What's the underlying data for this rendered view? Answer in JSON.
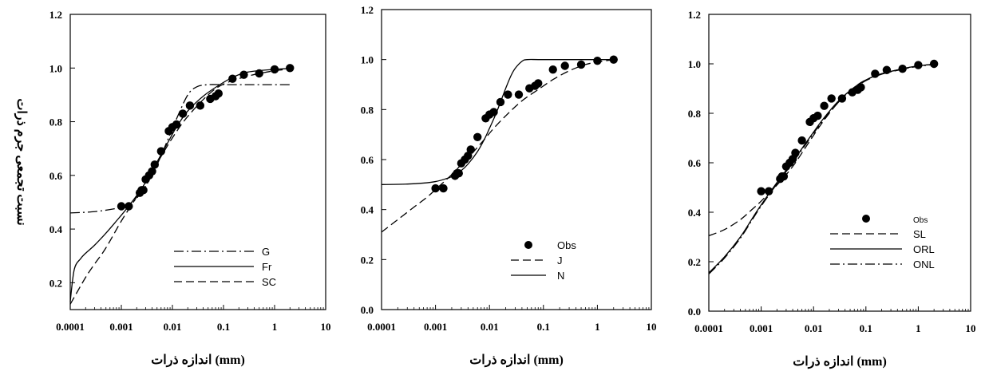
{
  "chart_data": [
    {
      "type": "line",
      "xscale": "log",
      "xlim": [
        0.0001,
        10
      ],
      "ylim": [
        0.1,
        1.2
      ],
      "xticks": [
        "0.0001",
        "0.001",
        "0.01",
        "0.1",
        "1",
        "10"
      ],
      "yticks": [
        "0.2",
        "0.4",
        "0.6",
        "0.8",
        "1.0",
        "1.2"
      ],
      "ytick_values": [
        0.2,
        0.4,
        0.6,
        0.8,
        1.0,
        1.2
      ],
      "xlabel": "اندازه  ذرات (mm)",
      "ylabel": "نسبت تجمعی جرم ذرات",
      "legend_position": "bottom-right",
      "observed": {
        "x": [
          0.001,
          0.0014,
          0.0023,
          0.0025,
          0.0027,
          0.003,
          0.0035,
          0.004,
          0.0045,
          0.006,
          0.0085,
          0.01,
          0.012,
          0.016,
          0.022,
          0.035,
          0.055,
          0.07,
          0.08,
          0.15,
          0.25,
          0.5,
          1.0,
          2.0
        ],
        "y": [
          0.485,
          0.485,
          0.535,
          0.545,
          0.545,
          0.585,
          0.6,
          0.615,
          0.64,
          0.69,
          0.765,
          0.78,
          0.79,
          0.83,
          0.86,
          0.86,
          0.885,
          0.895,
          0.905,
          0.96,
          0.975,
          0.98,
          0.995,
          1.0
        ]
      },
      "series": [
        {
          "name": "G",
          "dash": "dashdot",
          "x": [
            0.0001,
            0.0003,
            0.0007,
            0.001,
            0.0015,
            0.002,
            0.003,
            0.005,
            0.008,
            0.012,
            0.02,
            0.03,
            0.05,
            0.1,
            0.3,
            1.0,
            2.0
          ],
          "y": [
            0.46,
            0.465,
            0.475,
            0.483,
            0.495,
            0.515,
            0.56,
            0.64,
            0.73,
            0.81,
            0.9,
            0.93,
            0.938,
            0.938,
            0.938,
            0.938,
            0.938
          ]
        },
        {
          "name": "Fr",
          "dash": "solid",
          "x": [
            0.0001,
            0.00012,
            0.00016,
            0.0002,
            0.0003,
            0.0005,
            0.0008,
            0.0012,
            0.002,
            0.003,
            0.005,
            0.008,
            0.012,
            0.02,
            0.04,
            0.08,
            0.15,
            0.3,
            1.0,
            2.0
          ],
          "y": [
            0.13,
            0.25,
            0.29,
            0.31,
            0.34,
            0.385,
            0.43,
            0.47,
            0.525,
            0.575,
            0.65,
            0.72,
            0.78,
            0.84,
            0.895,
            0.935,
            0.965,
            0.985,
            0.995,
            0.998
          ]
        },
        {
          "name": "SC",
          "dash": "dashed",
          "x": [
            0.0001,
            0.0002,
            0.0003,
            0.0005,
            0.001,
            0.002,
            0.003,
            0.005,
            0.01,
            0.02,
            0.05,
            0.1,
            0.3,
            1.0,
            2.0
          ],
          "y": [
            0.12,
            0.22,
            0.27,
            0.33,
            0.43,
            0.52,
            0.575,
            0.645,
            0.74,
            0.82,
            0.9,
            0.94,
            0.97,
            0.99,
            0.995
          ]
        }
      ],
      "legend": [
        {
          "label": "G",
          "dash": "dashdot"
        },
        {
          "label": "Fr",
          "dash": "solid"
        },
        {
          "label": "SC",
          "dash": "dashed"
        }
      ]
    },
    {
      "type": "line",
      "xscale": "log",
      "xlim": [
        0.0001,
        10
      ],
      "ylim": [
        0.0,
        1.2
      ],
      "xticks": [
        "0.0001",
        "0.001",
        "0.01",
        "0.1",
        "1",
        "10"
      ],
      "yticks": [
        "0.0",
        "0.2",
        "0.4",
        "0.6",
        "0.8",
        "1.0",
        "1.2"
      ],
      "ytick_values": [
        0.0,
        0.2,
        0.4,
        0.6,
        0.8,
        1.0,
        1.2
      ],
      "xlabel": "اندازه  ذرات (mm)",
      "ylabel": "",
      "legend_position": "bottom-right",
      "observed": {
        "x": [
          0.001,
          0.0014,
          0.0023,
          0.0025,
          0.0027,
          0.003,
          0.0035,
          0.004,
          0.0045,
          0.006,
          0.0085,
          0.01,
          0.012,
          0.016,
          0.022,
          0.035,
          0.055,
          0.07,
          0.08,
          0.15,
          0.25,
          0.5,
          1.0,
          2.0
        ],
        "y": [
          0.485,
          0.485,
          0.535,
          0.545,
          0.545,
          0.585,
          0.6,
          0.615,
          0.64,
          0.69,
          0.765,
          0.78,
          0.79,
          0.83,
          0.86,
          0.86,
          0.885,
          0.895,
          0.905,
          0.96,
          0.975,
          0.98,
          0.995,
          1.0
        ]
      },
      "series": [
        {
          "name": "J",
          "dash": "dashed",
          "x": [
            0.0001,
            0.0002,
            0.0004,
            0.0007,
            0.001,
            0.002,
            0.003,
            0.005,
            0.008,
            0.012,
            0.02,
            0.04,
            0.08,
            0.15,
            0.3,
            0.6,
            1.0,
            2.0
          ],
          "y": [
            0.31,
            0.36,
            0.41,
            0.45,
            0.48,
            0.54,
            0.58,
            0.63,
            0.68,
            0.725,
            0.775,
            0.835,
            0.88,
            0.92,
            0.955,
            0.98,
            0.99,
            1.0
          ]
        },
        {
          "name": "N",
          "dash": "solid",
          "x": [
            0.0001,
            0.0003,
            0.0006,
            0.001,
            0.0015,
            0.002,
            0.003,
            0.004,
            0.006,
            0.008,
            0.01,
            0.013,
            0.016,
            0.02,
            0.025,
            0.03,
            0.04,
            0.05,
            0.1,
            1.0,
            2.0
          ],
          "y": [
            0.5,
            0.502,
            0.506,
            0.512,
            0.522,
            0.532,
            0.556,
            0.582,
            0.632,
            0.68,
            0.725,
            0.78,
            0.83,
            0.885,
            0.935,
            0.965,
            0.993,
            1.0,
            1.0,
            1.0,
            1.0
          ]
        }
      ],
      "legend": [
        {
          "label": "Obs",
          "marker": "circle"
        },
        {
          "label": "J",
          "dash": "dashed"
        },
        {
          "label": "N",
          "dash": "solid"
        }
      ]
    },
    {
      "type": "line",
      "xscale": "log",
      "xlim": [
        0.0001,
        10
      ],
      "ylim": [
        0.0,
        1.2
      ],
      "xticks": [
        "0.0001",
        "0.001",
        "0.01",
        "0.1",
        "1",
        "10"
      ],
      "yticks": [
        "0.0",
        "0.2",
        "0.4",
        "0.6",
        "0.8",
        "1.0",
        "1.2"
      ],
      "ytick_values": [
        0.0,
        0.2,
        0.4,
        0.6,
        0.8,
        1.0,
        1.2
      ],
      "xlabel": "اندازه  ذرات (mm)",
      "ylabel": "",
      "legend_position": "bottom-right",
      "observed": {
        "x": [
          0.001,
          0.0014,
          0.0023,
          0.0025,
          0.0027,
          0.003,
          0.0035,
          0.004,
          0.0045,
          0.006,
          0.0085,
          0.01,
          0.012,
          0.016,
          0.022,
          0.035,
          0.055,
          0.07,
          0.08,
          0.15,
          0.25,
          0.5,
          1.0,
          2.0
        ],
        "y": [
          0.485,
          0.485,
          0.535,
          0.545,
          0.545,
          0.585,
          0.6,
          0.615,
          0.64,
          0.69,
          0.765,
          0.78,
          0.79,
          0.83,
          0.86,
          0.86,
          0.885,
          0.895,
          0.905,
          0.96,
          0.975,
          0.98,
          0.995,
          1.0
        ]
      },
      "series": [
        {
          "name": "SL",
          "dash": "dashed",
          "x": [
            0.0001,
            0.0002,
            0.0004,
            0.0007,
            0.001,
            0.002,
            0.004,
            0.008,
            0.015,
            0.03,
            0.06,
            0.1,
            0.2,
            0.5,
            1.0,
            2.0
          ],
          "y": [
            0.305,
            0.33,
            0.37,
            0.415,
            0.445,
            0.51,
            0.585,
            0.68,
            0.765,
            0.845,
            0.905,
            0.935,
            0.96,
            0.98,
            0.992,
            0.998
          ]
        },
        {
          "name": "ORL",
          "dash": "solid",
          "x": [
            0.0001,
            0.0002,
            0.0004,
            0.0007,
            0.001,
            0.002,
            0.004,
            0.008,
            0.015,
            0.03,
            0.06,
            0.1,
            0.2,
            0.5,
            1.0,
            2.0
          ],
          "y": [
            0.155,
            0.22,
            0.3,
            0.38,
            0.43,
            0.52,
            0.605,
            0.695,
            0.775,
            0.85,
            0.905,
            0.935,
            0.96,
            0.98,
            0.992,
            0.998
          ]
        },
        {
          "name": "ONL",
          "dash": "dashdot",
          "x": [
            0.0001,
            0.0002,
            0.0004,
            0.0007,
            0.001,
            0.002,
            0.004,
            0.008,
            0.015,
            0.03,
            0.06,
            0.1,
            0.2,
            0.5,
            1.0,
            2.0
          ],
          "y": [
            0.15,
            0.215,
            0.295,
            0.375,
            0.425,
            0.515,
            0.6,
            0.69,
            0.77,
            0.845,
            0.9,
            0.932,
            0.958,
            0.978,
            0.99,
            0.997
          ]
        }
      ],
      "legend": [
        {
          "label": "Obs",
          "marker": "circle",
          "small": true
        },
        {
          "label": "SL",
          "dash": "dashed"
        },
        {
          "label": "ORL",
          "dash": "solid"
        },
        {
          "label": "ONL",
          "dash": "dashdot"
        }
      ]
    }
  ]
}
